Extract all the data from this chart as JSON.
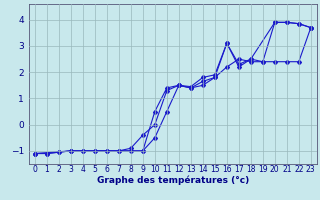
{
  "xlabel": "Graphe des températures (°c)",
  "background_color": "#c8e8ec",
  "grid_color": "#9ab8bc",
  "line_color": "#1a1acc",
  "ylim": [
    -1.5,
    4.6
  ],
  "xlim": [
    -0.5,
    23.5
  ],
  "series1_x": [
    0,
    1,
    2,
    3,
    4,
    5,
    6,
    7,
    8,
    9,
    10,
    11,
    12,
    13,
    14,
    15,
    16,
    17,
    18,
    19,
    20,
    21,
    22,
    23
  ],
  "series1_y": [
    -1.1,
    -1.1,
    -1.05,
    -1.0,
    -1.0,
    -1.0,
    -1.0,
    -1.0,
    -1.0,
    -1.0,
    0.5,
    1.4,
    1.5,
    1.45,
    1.8,
    1.9,
    3.1,
    2.3,
    2.5,
    2.4,
    3.9,
    3.9,
    3.85,
    3.7
  ],
  "series2_x": [
    0,
    1,
    2,
    3,
    4,
    5,
    6,
    7,
    8,
    9,
    10,
    11,
    12,
    13,
    14,
    15,
    16,
    17,
    18,
    19,
    20,
    21,
    22,
    23
  ],
  "series2_y": [
    -1.1,
    -1.1,
    -1.05,
    -1.0,
    -1.0,
    -1.0,
    -1.0,
    -1.0,
    -0.9,
    -0.4,
    0.0,
    1.3,
    1.5,
    1.4,
    1.65,
    1.8,
    2.2,
    2.5,
    2.4,
    2.4,
    2.4,
    2.4,
    2.4,
    3.7
  ],
  "series3_x": [
    0,
    3,
    9,
    10,
    11,
    12,
    13,
    14,
    15,
    16,
    17,
    18,
    20,
    21,
    22,
    23
  ],
  "series3_y": [
    -1.1,
    -1.0,
    -1.0,
    -0.5,
    0.5,
    1.5,
    1.4,
    1.5,
    1.8,
    3.1,
    2.2,
    2.5,
    3.9,
    3.9,
    3.85,
    3.7
  ],
  "yticks": [
    -1,
    0,
    1,
    2,
    3,
    4
  ],
  "xtick_labels": [
    "0",
    "1",
    "2",
    "3",
    "4",
    "5",
    "6",
    "7",
    "8",
    "9",
    "10",
    "11",
    "12",
    "13",
    "14",
    "15",
    "16",
    "17",
    "18",
    "19",
    "20",
    "21",
    "22",
    "23"
  ],
  "label_fontsize": 5.5,
  "ytick_fontsize": 6.5,
  "xlabel_fontsize": 6.5
}
